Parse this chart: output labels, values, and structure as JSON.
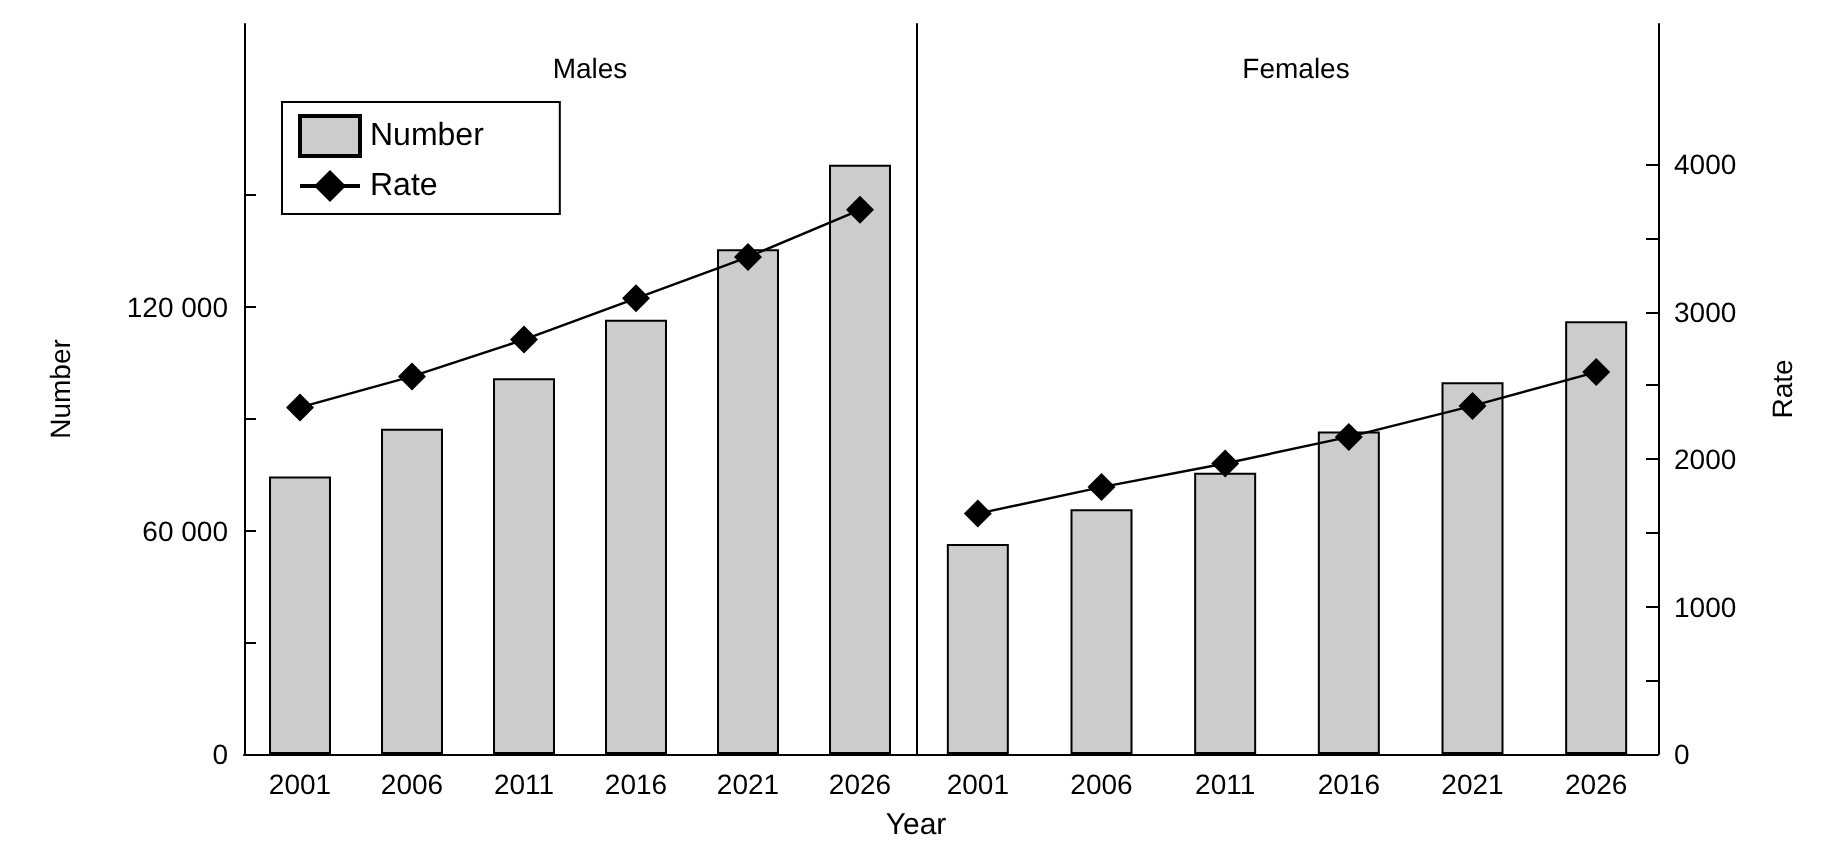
{
  "chart_data": [
    {
      "type": "bar",
      "title": "Males",
      "xlabel": "Year",
      "ylabel": "Number",
      "categories": [
        "2001",
        "2006",
        "2011",
        "2016",
        "2021",
        "2026"
      ],
      "series": [
        {
          "name": "Number",
          "color": "#cccccc",
          "values": [
            74500,
            87300,
            100900,
            116600,
            135500,
            158200
          ]
        },
        {
          "name": "Rate",
          "type": "line",
          "axis": "y2",
          "color": "#000000",
          "values": [
            2350,
            2560,
            2810,
            3090,
            3370,
            3690
          ]
        }
      ],
      "ylim": [
        0,
        196000
      ],
      "yticks": [
        0,
        {
          "value": 30000,
          "label": null
        },
        {
          "value": 60000,
          "label": "60 000"
        },
        {
          "value": 90000,
          "label": null
        },
        {
          "value": 120000,
          "label": "120 000"
        },
        {
          "value": 150000,
          "label": null
        }
      ],
      "y2lim": [
        0,
        4950
      ],
      "marker": "diamond",
      "legend": "top left",
      "grid": false,
      "tick_labels": "xy"
    },
    {
      "type": "bar",
      "title": "Females",
      "y2label": "Rate",
      "categories": [
        "2001",
        "2006",
        "2011",
        "2016",
        "2021",
        "2026"
      ],
      "series": [
        {
          "color": "#cccccc",
          "values": [
            56400,
            65700,
            75500,
            86600,
            99800,
            116200
          ]
        },
        {
          "type": "line",
          "axis": "y2",
          "color": "#000000",
          "values": [
            1630,
            1810,
            1970,
            2150,
            2360,
            2590
          ]
        }
      ],
      "ylim": [
        0,
        196000
      ],
      "y2lim": [
        0,
        4950
      ],
      "y2ticks": [
        0,
        {
          "value": 500,
          "label": null
        },
        1000,
        {
          "value": 1500,
          "label": null
        },
        2000,
        {
          "value": 2500,
          "label": null
        },
        3000,
        {
          "value": 3500,
          "label": null
        },
        4000
      ],
      "marker": "diamond",
      "grid": false,
      "tick_labels": "xy2"
    }
  ]
}
